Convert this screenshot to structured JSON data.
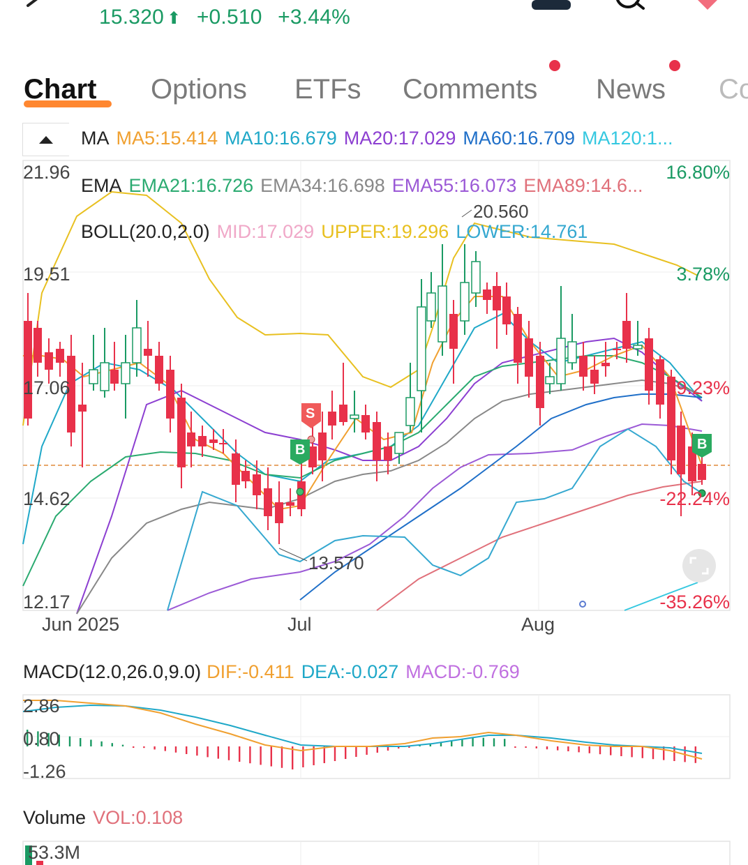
{
  "header": {
    "price": "15.320",
    "arrow": "⬆",
    "change": "+0.510",
    "change_pct": "+3.44%"
  },
  "tabs": [
    {
      "label": "Chart",
      "active": true,
      "dot": false
    },
    {
      "label": "Options",
      "active": false,
      "dot": false
    },
    {
      "label": "ETFs",
      "active": false,
      "dot": false
    },
    {
      "label": "Comments",
      "active": false,
      "dot": true
    },
    {
      "label": "News",
      "active": false,
      "dot": true
    },
    {
      "label": "Co",
      "active": false,
      "dot": false
    }
  ],
  "indicators": {
    "ma": {
      "name": "MA",
      "ma5": "MA5:15.414",
      "ma10": "MA10:16.679",
      "ma20": "MA20:17.029",
      "ma60": "MA60:16.709",
      "ma120": "MA120:1..."
    },
    "ema": {
      "name": "EMA",
      "ema21": "EMA21:16.726",
      "ema34": "EMA34:16.698",
      "ema55": "EMA55:16.073",
      "ema89": "EMA89:14.6..."
    },
    "boll": {
      "name": "BOLL(20.0,2.0)",
      "mid": "MID:17.029",
      "upper": "UPPER:19.296",
      "lower": "LOWER:14.761"
    }
  },
  "main_axis": {
    "y_left": [
      "21.96",
      "19.51",
      "17.06",
      "14.62",
      "12.17"
    ],
    "y_right": [
      "16.80%",
      "3.78%",
      "-9.23%",
      "-22.24%",
      "-35.26%"
    ],
    "x": [
      "Jun 2025",
      "Jul",
      "Aug"
    ],
    "high_label": "20.560",
    "low_label": "13.570",
    "markers": {
      "sell": "S",
      "buy1": "B",
      "buy2": "B"
    }
  },
  "macd": {
    "title": "MACD(12.0,26.0,9.0)",
    "dif": "DIF:-0.411",
    "dea": "DEA:-0.027",
    "macd": "MACD:-0.769",
    "y": [
      "2.86",
      "0.80",
      "-1.26"
    ]
  },
  "volume": {
    "title": "Volume",
    "vol": "VOL:0.108",
    "y_top": "53.3M"
  },
  "colors": {
    "up": "#1a9a63",
    "down": "#e8314a",
    "ma5": "#f0a030",
    "ma10": "#1fa8c8",
    "ma20": "#8c3fd1",
    "ma60": "#1f6fc8",
    "ma120": "#35c8e0",
    "ema21": "#2aaa70",
    "ema34": "#888888",
    "ema55": "#9b59d6",
    "ema89": "#e0707a",
    "boll_mid": "#f0a8c8",
    "boll_upper": "#e8c020",
    "boll_lower": "#35a8d0",
    "accent": "#ff7a1a"
  }
}
